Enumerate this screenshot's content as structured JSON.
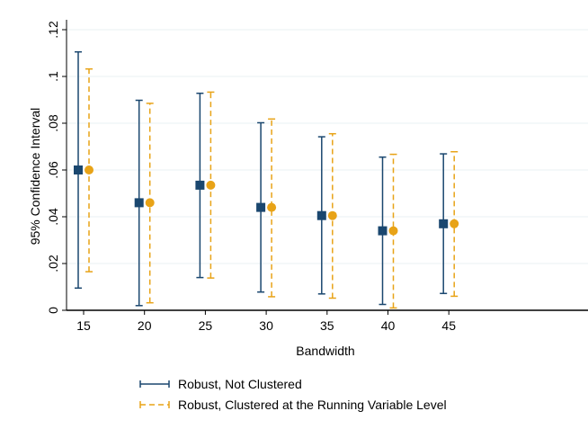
{
  "chart_data": {
    "type": "errorbar",
    "xlabel": "Bandwidth",
    "ylabel": "95% Confidence Interval",
    "categories": [
      "15",
      "20",
      "25",
      "30",
      "35",
      "40",
      "45"
    ],
    "ylim": [
      0,
      0.12
    ],
    "yticks": [
      "0",
      ".02",
      ".04",
      ".06",
      ".08",
      ".1",
      ".12"
    ],
    "ytick_values": [
      0,
      0.02,
      0.04,
      0.06,
      0.08,
      0.1,
      0.12
    ],
    "grid": true,
    "legend_position": "bottom",
    "series": [
      {
        "name": "Robust, Not Clustered",
        "color": "#1a476f",
        "marker": "square",
        "line_style": "solid",
        "estimate": [
          0.06,
          0.046,
          0.0535,
          0.044,
          0.0405,
          0.034,
          0.037
        ],
        "lower": [
          0.0095,
          0.002,
          0.014,
          0.0078,
          0.007,
          0.0025,
          0.0072
        ],
        "upper": [
          0.1105,
          0.0898,
          0.0928,
          0.0802,
          0.0742,
          0.0655,
          0.0669
        ]
      },
      {
        "name": "Robust, Clustered at the Running Variable Level",
        "color": "#e8a317",
        "marker": "circle",
        "line_style": "dashed",
        "estimate": [
          0.06,
          0.046,
          0.0535,
          0.044,
          0.0405,
          0.034,
          0.037
        ],
        "lower": [
          0.0165,
          0.0032,
          0.0138,
          0.0058,
          0.0052,
          0.001,
          0.006
        ],
        "upper": [
          0.1032,
          0.0885,
          0.0933,
          0.0818,
          0.0755,
          0.0667,
          0.0678
        ]
      }
    ]
  }
}
